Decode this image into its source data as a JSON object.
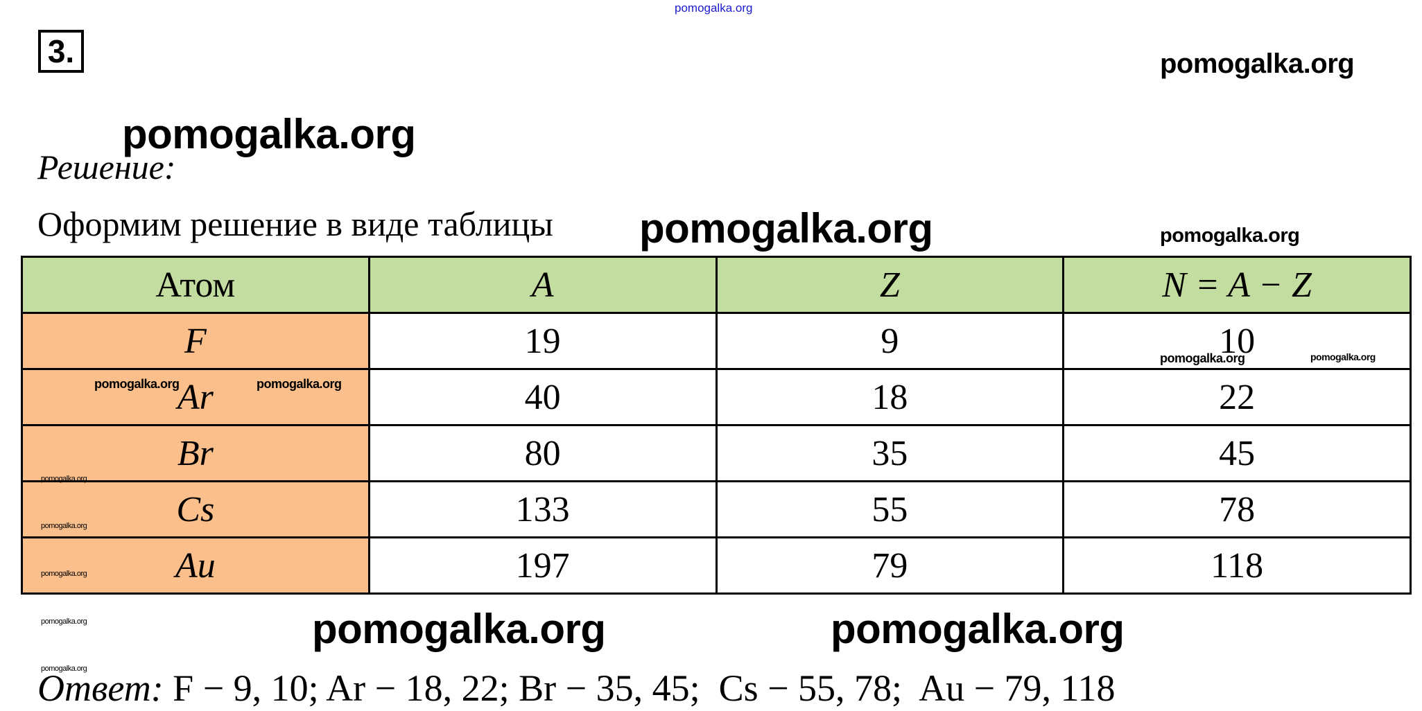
{
  "watermark": "pomogalka.org",
  "colors": {
    "header_bg": "#c3dc9f",
    "atom_col_bg": "#fbbf8c",
    "top_link": "#1a1acc"
  },
  "task_number": "3.",
  "solution_label": "Решение:",
  "intro_text": "Оформим решение в виде таблицы",
  "table": {
    "headers": [
      "Атом",
      "A",
      "Z",
      "N = A − Z"
    ],
    "rows": [
      [
        "F",
        "19",
        "9",
        "10"
      ],
      [
        "Ar",
        "40",
        "18",
        "22"
      ],
      [
        "Br",
        "80",
        "35",
        "45"
      ],
      [
        "Cs",
        "133",
        "55",
        "78"
      ],
      [
        "Au",
        "197",
        "79",
        "118"
      ]
    ]
  },
  "answer_label": "Ответ:",
  "answer_text": "F − 9, 10; Ar − 18, 22; Br − 35, 45;  Cs − 55, 78;  Au − 79, 118"
}
